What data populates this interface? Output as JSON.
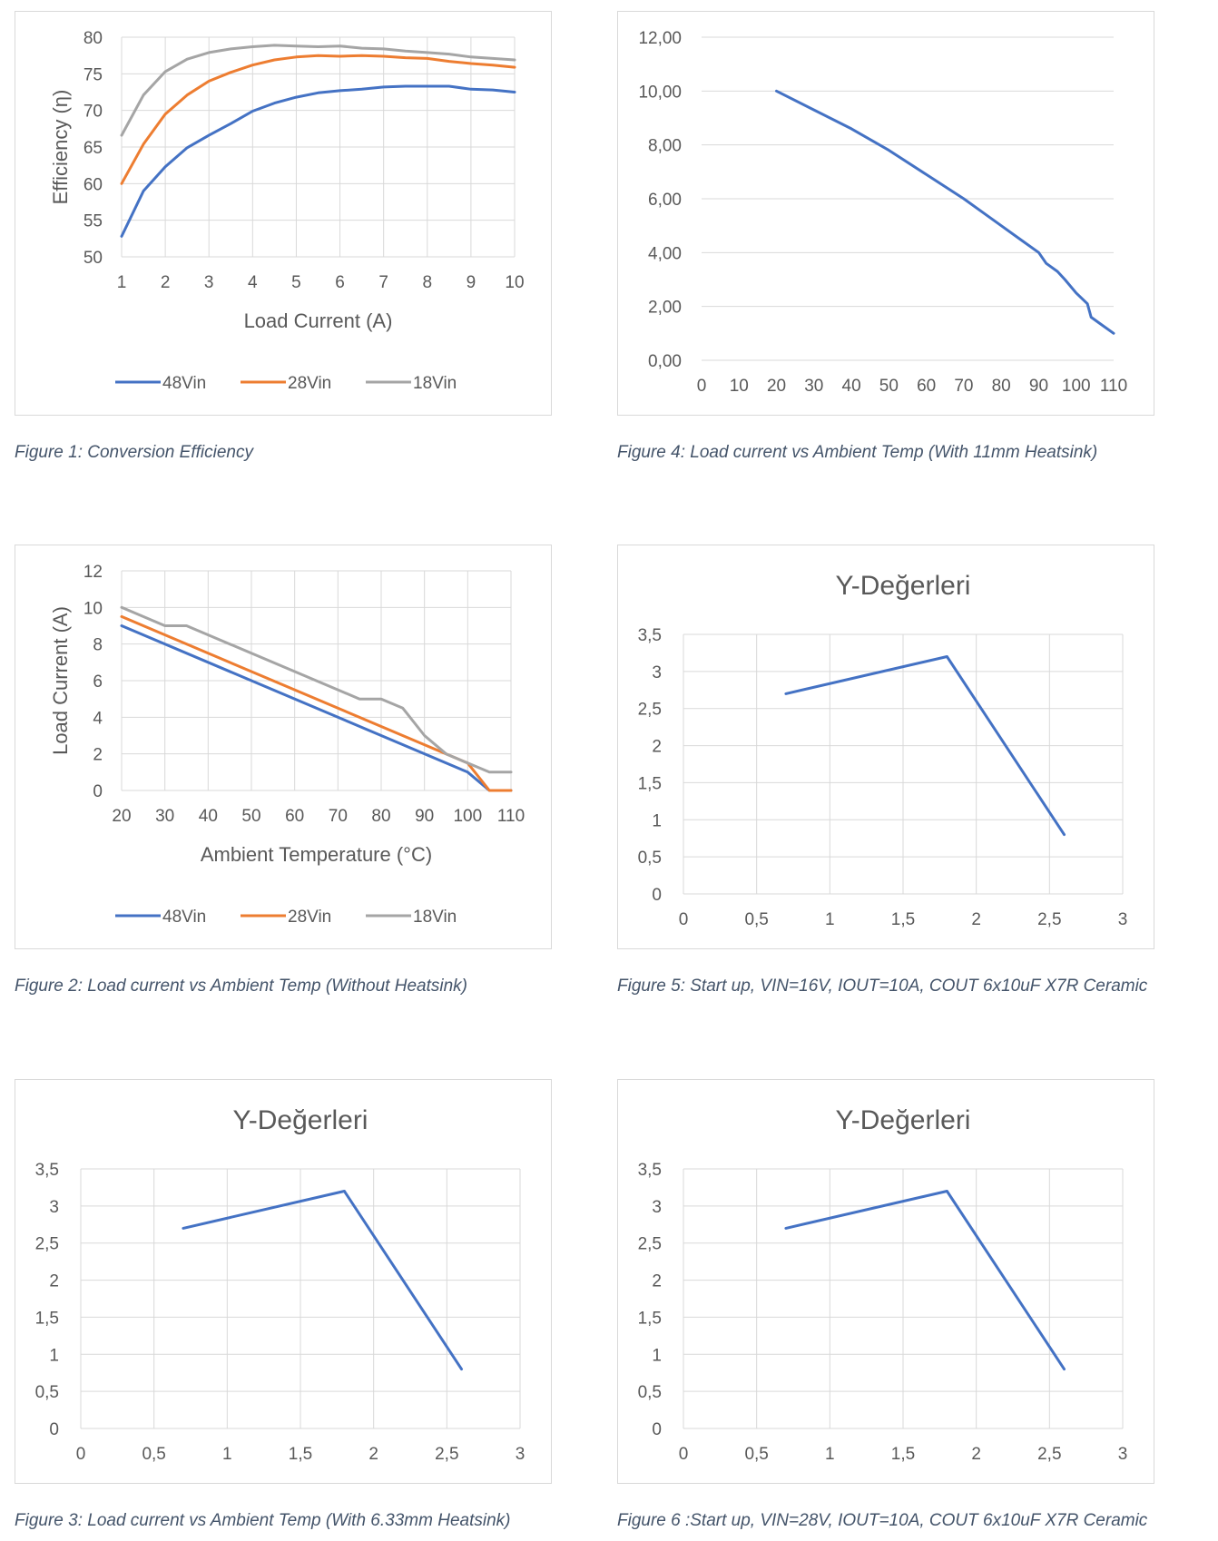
{
  "colors": {
    "48Vin": "#4472c4",
    "28Vin": "#ed7d31",
    "18Vin": "#a5a5a5",
    "single": "#4472c4",
    "grid": "#d9d9d9",
    "caption": "#44546a",
    "text": "#595959"
  },
  "figures": [
    {
      "id": "fig1",
      "caption": "Figure 1: Conversion Efficiency",
      "chart_data": {
        "type": "line",
        "title": "",
        "xlabel": "Load Current (A)",
        "ylabel": "Efficiency (η)",
        "xlim": [
          1,
          10
        ],
        "ylim": [
          50,
          80
        ],
        "xticks": [
          1,
          2,
          3,
          4,
          5,
          6,
          7,
          8,
          9,
          10
        ],
        "yticks": [
          50,
          55,
          60,
          65,
          70,
          75,
          80
        ],
        "xtick_labels": [
          "1",
          "2",
          "3",
          "4",
          "5",
          "6",
          "7",
          "8",
          "9",
          "10"
        ],
        "ytick_labels": [
          "50",
          "55",
          "60",
          "65",
          "70",
          "75",
          "80"
        ],
        "grid": "both",
        "legend": "bottom",
        "series": [
          {
            "name": "48Vin",
            "color": "#4472c4",
            "x": [
              1,
              1.5,
              2,
              2.5,
              3,
              3.5,
              4,
              4.5,
              5,
              5.5,
              6,
              6.5,
              7,
              7.5,
              8,
              8.5,
              9,
              9.5,
              10
            ],
            "y": [
              52.8,
              59,
              62.3,
              64.9,
              66.6,
              68.2,
              69.9,
              71,
              71.8,
              72.4,
              72.7,
              72.9,
              73.2,
              73.3,
              73.3,
              73.3,
              72.9,
              72.8,
              72.5
            ]
          },
          {
            "name": "28Vin",
            "color": "#ed7d31",
            "x": [
              1,
              1.5,
              2,
              2.5,
              3,
              3.5,
              4,
              4.5,
              5,
              5.5,
              6,
              6.5,
              7,
              7.5,
              8,
              8.5,
              9,
              9.5,
              10
            ],
            "y": [
              60,
              65.4,
              69.5,
              72.1,
              74,
              75.2,
              76.2,
              76.9,
              77.3,
              77.5,
              77.4,
              77.5,
              77.4,
              77.2,
              77.1,
              76.7,
              76.4,
              76.2,
              75.9
            ]
          },
          {
            "name": "18Vin",
            "color": "#a5a5a5",
            "x": [
              1,
              1.5,
              2,
              2.5,
              3,
              3.5,
              4,
              4.5,
              5,
              5.5,
              6,
              6.5,
              7,
              7.5,
              8,
              8.5,
              9,
              9.5,
              10
            ],
            "y": [
              66.6,
              72.1,
              75.3,
              77,
              77.9,
              78.4,
              78.7,
              78.9,
              78.8,
              78.7,
              78.8,
              78.5,
              78.4,
              78.1,
              77.9,
              77.7,
              77.3,
              77.1,
              76.9
            ]
          }
        ]
      }
    },
    {
      "id": "fig2",
      "caption": "Figure 2: Load current vs Ambient Temp (Without Heatsink)",
      "chart_data": {
        "type": "line",
        "title": "",
        "xlabel": "Ambient Temperature (°C)",
        "ylabel": "Load Current (A)",
        "xlim": [
          20,
          110
        ],
        "ylim": [
          0,
          12
        ],
        "xticks": [
          20,
          30,
          40,
          50,
          60,
          70,
          80,
          90,
          100,
          110
        ],
        "yticks": [
          0,
          2,
          4,
          6,
          8,
          10,
          12
        ],
        "xtick_labels": [
          "20",
          "30",
          "40",
          "50",
          "60",
          "70",
          "80",
          "90",
          "100",
          "110"
        ],
        "ytick_labels": [
          "0",
          "2",
          "4",
          "6",
          "8",
          "10",
          "12"
        ],
        "grid": "both",
        "legend": "bottom",
        "series": [
          {
            "name": "48Vin",
            "color": "#4472c4",
            "x": [
              20,
              100,
              105,
              110
            ],
            "y": [
              9,
              1,
              0,
              0
            ]
          },
          {
            "name": "28Vin",
            "color": "#ed7d31",
            "x": [
              20,
              100,
              105,
              110
            ],
            "y": [
              9.5,
              1.5,
              0,
              0
            ]
          },
          {
            "name": "18Vin",
            "color": "#a5a5a5",
            "x": [
              20,
              30,
              35,
              70,
              75,
              80,
              85,
              90,
              95,
              100,
              105,
              110
            ],
            "y": [
              10,
              9,
              9,
              5.5,
              5,
              5,
              4.5,
              3,
              2,
              1.5,
              1,
              1
            ]
          }
        ]
      }
    },
    {
      "id": "fig3",
      "caption": "Figure 3: Load current vs Ambient Temp (With 6.33mm Heatsink)",
      "chart_data": {
        "type": "line",
        "title": "Y-Değerleri",
        "xlabel": "",
        "ylabel": "",
        "xlim": [
          0,
          3
        ],
        "ylim": [
          0,
          3.5
        ],
        "xticks": [
          0,
          0.5,
          1,
          1.5,
          2,
          2.5,
          3
        ],
        "yticks": [
          0,
          0.5,
          1,
          1.5,
          2,
          2.5,
          3,
          3.5
        ],
        "xtick_labels": [
          "0",
          "0,5",
          "1",
          "1,5",
          "2",
          "2,5",
          "3"
        ],
        "ytick_labels": [
          "0",
          "0,5",
          "1",
          "1,5",
          "2",
          "2,5",
          "3",
          "3,5"
        ],
        "grid": "both",
        "legend": "none",
        "series": [
          {
            "name": "",
            "color": "#4472c4",
            "x": [
              0.7,
              1.8,
              2.6
            ],
            "y": [
              2.7,
              3.2,
              0.8
            ]
          }
        ]
      }
    },
    {
      "id": "fig4",
      "caption": "Figure 4: Load current vs Ambient Temp (With 11mm Heatsink)",
      "chart_data": {
        "type": "line",
        "title": "",
        "xlabel": "",
        "ylabel": "",
        "xlim": [
          0,
          110
        ],
        "ylim": [
          0,
          12
        ],
        "xticks": [
          0,
          10,
          20,
          30,
          40,
          50,
          60,
          70,
          80,
          90,
          100,
          110
        ],
        "yticks": [
          0,
          2,
          4,
          6,
          8,
          10,
          12
        ],
        "xtick_labels": [
          "0",
          "10",
          "20",
          "30",
          "40",
          "50",
          "60",
          "70",
          "80",
          "90",
          "100",
          "110"
        ],
        "ytick_labels": [
          "0,00",
          "2,00",
          "4,00",
          "6,00",
          "8,00",
          "10,00",
          "12,00"
        ],
        "grid": "horizontal",
        "legend": "none",
        "series": [
          {
            "name": "",
            "color": "#4472c4",
            "x": [
              20,
              30,
              40,
              50,
              60,
              70,
              75,
              80,
              85,
              90,
              92,
              95,
              97,
              100,
              103,
              104,
              106,
              110
            ],
            "y": [
              10,
              9.3,
              8.6,
              7.8,
              6.9,
              6,
              5.5,
              5,
              4.5,
              4,
              3.6,
              3.3,
              3,
              2.5,
              2.1,
              1.6,
              1.4,
              1
            ]
          }
        ]
      }
    },
    {
      "id": "fig5",
      "caption": "Figure 5: Start up, VIN=16V, IOUT=10A, COUT 6x10uF X7R Ceramic",
      "chart_data": {
        "type": "line",
        "title": "Y-Değerleri",
        "xlabel": "",
        "ylabel": "",
        "xlim": [
          0,
          3
        ],
        "ylim": [
          0,
          3.5
        ],
        "xticks": [
          0,
          0.5,
          1,
          1.5,
          2,
          2.5,
          3
        ],
        "yticks": [
          0,
          0.5,
          1,
          1.5,
          2,
          2.5,
          3,
          3.5
        ],
        "xtick_labels": [
          "0",
          "0,5",
          "1",
          "1,5",
          "2",
          "2,5",
          "3"
        ],
        "ytick_labels": [
          "0",
          "0,5",
          "1",
          "1,5",
          "2",
          "2,5",
          "3",
          "3,5"
        ],
        "grid": "both",
        "legend": "none",
        "series": [
          {
            "name": "",
            "color": "#4472c4",
            "x": [
              0.7,
              1.8,
              2.6
            ],
            "y": [
              2.7,
              3.2,
              0.8
            ]
          }
        ]
      }
    },
    {
      "id": "fig6",
      "caption": "Figure 6 :Start up, VIN=28V, IOUT=10A, COUT 6x10uF X7R Ceramic",
      "chart_data": {
        "type": "line",
        "title": "Y-Değerleri",
        "xlabel": "",
        "ylabel": "",
        "xlim": [
          0,
          3
        ],
        "ylim": [
          0,
          3.5
        ],
        "xticks": [
          0,
          0.5,
          1,
          1.5,
          2,
          2.5,
          3
        ],
        "yticks": [
          0,
          0.5,
          1,
          1.5,
          2,
          2.5,
          3,
          3.5
        ],
        "xtick_labels": [
          "0",
          "0,5",
          "1",
          "1,5",
          "2",
          "2,5",
          "3"
        ],
        "ytick_labels": [
          "0",
          "0,5",
          "1",
          "1,5",
          "2",
          "2,5",
          "3",
          "3,5"
        ],
        "grid": "both",
        "legend": "none",
        "series": [
          {
            "name": "",
            "color": "#4472c4",
            "x": [
              0.7,
              1.8,
              2.6
            ],
            "y": [
              2.7,
              3.2,
              0.8
            ]
          }
        ]
      }
    }
  ]
}
